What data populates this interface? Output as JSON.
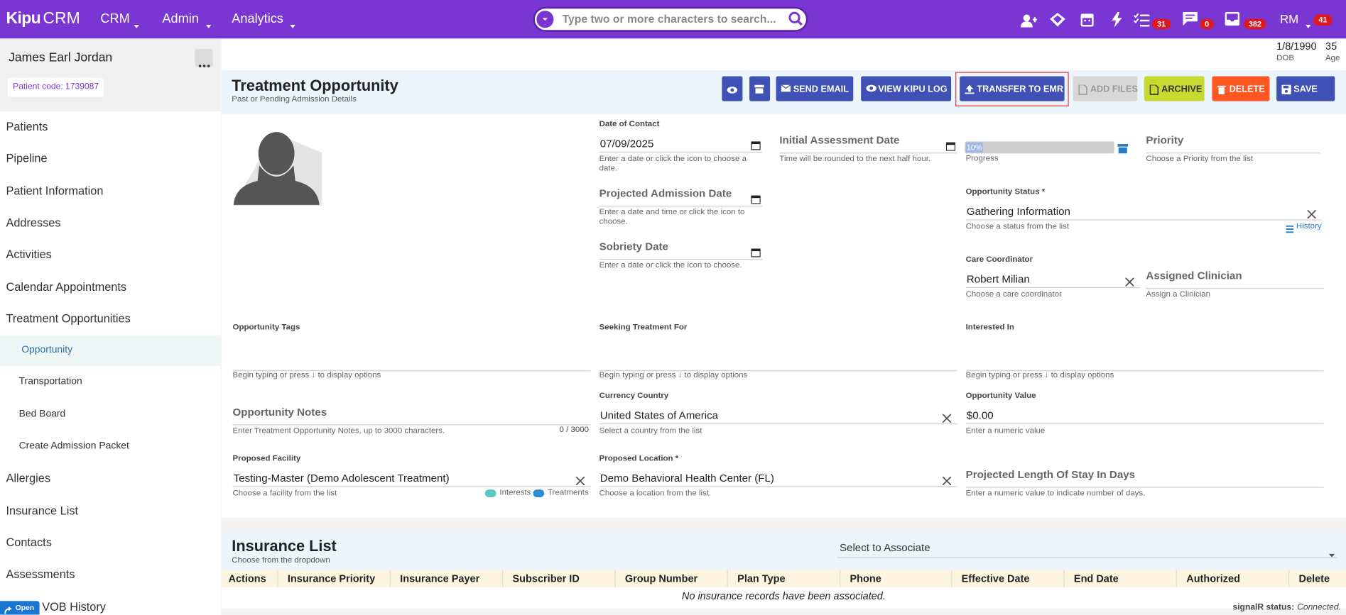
{
  "header": {
    "brand": "Kipu",
    "brand_suffix": "CRM",
    "menu": [
      "CRM",
      "Admin",
      "Analytics"
    ],
    "search_placeholder": "Type two or more characters to search...",
    "counters": [
      "31",
      "0",
      "382"
    ],
    "user": "RM",
    "user_counter": "41"
  },
  "patient": {
    "name": "James Earl Jordan",
    "code": "Patient code: 1739087",
    "dob": "1/8/1990",
    "dob_label": "DOB",
    "age": "35",
    "age_label": "Age"
  },
  "sidebar": {
    "items": [
      "Patients",
      "Pipeline",
      "Patient Information",
      "Addresses",
      "Activities",
      "Calendar Appointments",
      "Treatment Opportunities"
    ],
    "subitems": [
      "Opportunity",
      "Transportation",
      "Bed Board",
      "Create Admission Packet"
    ],
    "items_after": [
      "Allergies",
      "Insurance List",
      "Contacts",
      "Assessments",
      "VOB History"
    ],
    "open_button": "Open"
  },
  "opportunity": {
    "title": "Treatment Opportunity",
    "subtitle": "Past or Pending Admission Details",
    "buttons": [
      "SEND EMAIL",
      "VIEW KIPU LOG",
      "TRANSFER TO EMR",
      "ADD FILES",
      "ARCHIVE",
      "DELETE",
      "SAVE"
    ],
    "progress": {
      "text": "10%",
      "caption": "Progress"
    },
    "history": "History",
    "notes_counter": "0 / 3000",
    "facility_legend": [
      "Interests",
      "Treatments"
    ],
    "fields": [
      {
        "label": "Date of Contact",
        "value": "07/09/2025",
        "hint": "Enter a date or click the icon to choose a date."
      },
      {
        "label": "Initial Assessment Date",
        "hint": "Time will be rounded to the next half hour."
      },
      {
        "label": "Priority",
        "hint": "Choose a Priority from the list"
      },
      {
        "label": "Projected Admission Date",
        "hint": "Enter a date and time or click the icon to choose."
      },
      {
        "label": "Opportunity Status *",
        "value": "Gathering Information",
        "hint": "Choose a status from the list"
      },
      {
        "label": "Sobriety Date",
        "hint": "Enter a date or click the icon to choose."
      },
      {
        "label": "Care Coordinator",
        "value": "Robert Milian",
        "hint": "Choose a care coordinator"
      },
      {
        "label": "Assigned Clinician",
        "hint": "Assign a Clinician"
      },
      {
        "label": "Opportunity Tags",
        "hint": "Begin typing or press ↓ to display options"
      },
      {
        "label": "Seeking Treatment For",
        "hint": "Begin typing or press ↓ to display options"
      },
      {
        "label": "Interested In",
        "hint": "Begin typing or press ↓ to display options"
      },
      {
        "label": "Opportunity Notes",
        "hint": "Enter Treatment Opportunity Notes, up to 3000 characters."
      },
      {
        "label": "Currency Country",
        "value": "United States of America",
        "hint": "Select a country from the list"
      },
      {
        "label": "Opportunity Value",
        "value": "$0.00",
        "hint": "Enter a numeric value"
      },
      {
        "label": "Proposed Facility",
        "value": "Testing-Master (Demo Adolescent Treatment)",
        "hint": "Choose a facility from the list"
      },
      {
        "label": "Proposed Location *",
        "value": "Demo Behavioral Health Center (FL)",
        "hint": "Choose a location from the list."
      },
      {
        "label": "Projected Length Of Stay In Days",
        "hint": "Enter a numeric value to indicate number of days."
      }
    ]
  },
  "insurance": {
    "title": "Insurance List",
    "subtitle": "Choose from the dropdown",
    "select": "Select to Associate",
    "columns": [
      "Actions",
      "Insurance Priority",
      "Insurance Payer",
      "Subscriber ID",
      "Group Number",
      "Plan Type",
      "Phone",
      "Effective Date",
      "End Date",
      "Authorized",
      "Delete"
    ],
    "empty": "No insurance records have been associated."
  },
  "status": {
    "label": "signalR status:",
    "value": "Connected."
  }
}
